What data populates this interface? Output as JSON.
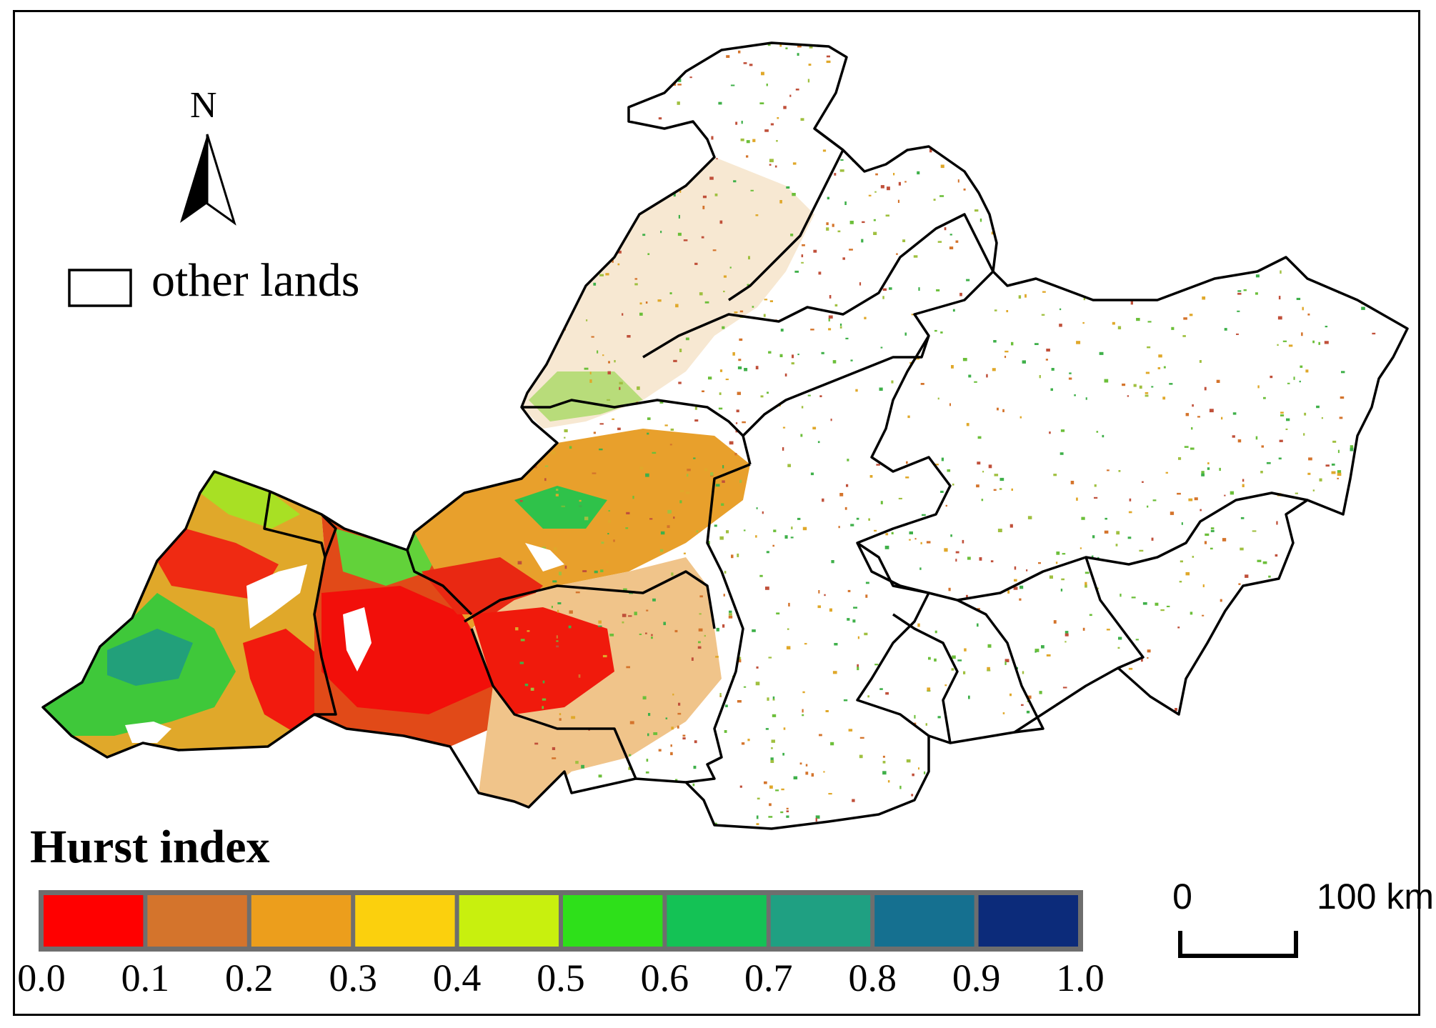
{
  "map": {
    "north_label": "N",
    "legend": {
      "other_lands_label": "other lands",
      "title": "Hurst index",
      "classes": [
        {
          "range": [
            0.0,
            0.1
          ],
          "color": "#ff0000"
        },
        {
          "range": [
            0.1,
            0.2
          ],
          "color": "#d4742c"
        },
        {
          "range": [
            0.2,
            0.3
          ],
          "color": "#ec9e1c"
        },
        {
          "range": [
            0.3,
            0.4
          ],
          "color": "#fbd00d"
        },
        {
          "range": [
            0.4,
            0.5
          ],
          "color": "#c8f00e"
        },
        {
          "range": [
            0.5,
            0.6
          ],
          "color": "#2ee01a"
        },
        {
          "range": [
            0.6,
            0.7
          ],
          "color": "#14c255"
        },
        {
          "range": [
            0.7,
            0.8
          ],
          "color": "#1fa082"
        },
        {
          "range": [
            0.8,
            0.9
          ],
          "color": "#157090"
        },
        {
          "range": [
            0.9,
            1.0
          ],
          "color": "#0c2b7a"
        }
      ],
      "tick_labels": [
        "0.0",
        "0.1",
        "0.2",
        "0.3",
        "0.4",
        "0.5",
        "0.6",
        "0.7",
        "0.8",
        "0.9",
        "1.0"
      ]
    },
    "scale_bar": {
      "zero_label": "0",
      "distance_label": "100 km"
    }
  }
}
